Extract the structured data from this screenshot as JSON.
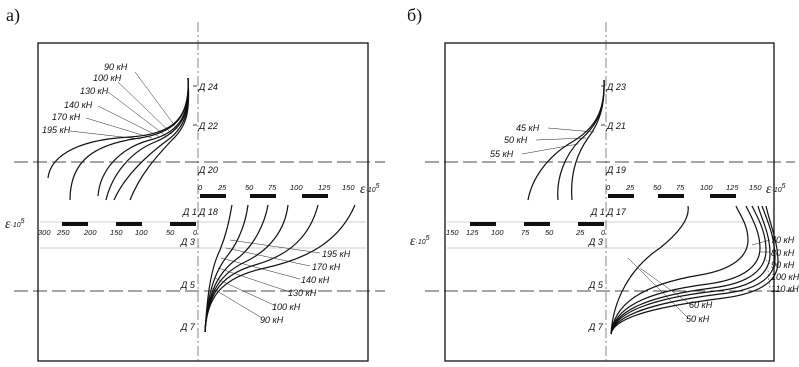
{
  "panels": [
    {
      "id": "a",
      "letter": "а)",
      "epsilon_label": "ε",
      "epsilon_exp": "·10",
      "epsilon_pow": "5",
      "gauges": [
        "Д 24",
        "Д 22",
        "Д 20",
        "Д 1",
        "Д 18",
        "Д 3",
        "Д 5",
        "Д 7"
      ],
      "top_axis_ticks": [
        "0",
        "25",
        "50",
        "75",
        "100",
        "125",
        "150"
      ],
      "left_axis_ticks": [
        "300",
        "250",
        "200",
        "150",
        "100",
        "50",
        "0"
      ],
      "upper_loads": [
        "90 кН",
        "100 кН",
        "130 кН",
        "140 кН",
        "170 кН",
        "195 кН"
      ],
      "lower_loads": [
        "195 кН",
        "170 кН",
        "140 кН",
        "130 кН",
        "100 кН",
        "90 кН"
      ]
    },
    {
      "id": "b",
      "letter": "б)",
      "epsilon_label": "ε",
      "epsilon_exp": "·10",
      "epsilon_pow": "5",
      "gauges": [
        "Д 23",
        "Д 21",
        "Д 19",
        "Д 1",
        "Д 17",
        "Д 3",
        "Д 5",
        "Д 7"
      ],
      "top_axis_ticks": [
        "0",
        "25",
        "50",
        "75",
        "100",
        "125",
        "150"
      ],
      "left_axis_ticks": [
        "150",
        "125",
        "100",
        "75",
        "50",
        "25",
        "0"
      ],
      "upper_loads": [
        "45 кН",
        "50 кН",
        "55 кН"
      ],
      "lower_loads_right": [
        "70 кН",
        "80 кН",
        "90 кН",
        "100 кН",
        "110 кН"
      ],
      "lower_loads_mid": [
        "60 кН",
        "50 кН"
      ]
    }
  ],
  "colors": {
    "ink": "#111111",
    "background": "#ffffff"
  }
}
